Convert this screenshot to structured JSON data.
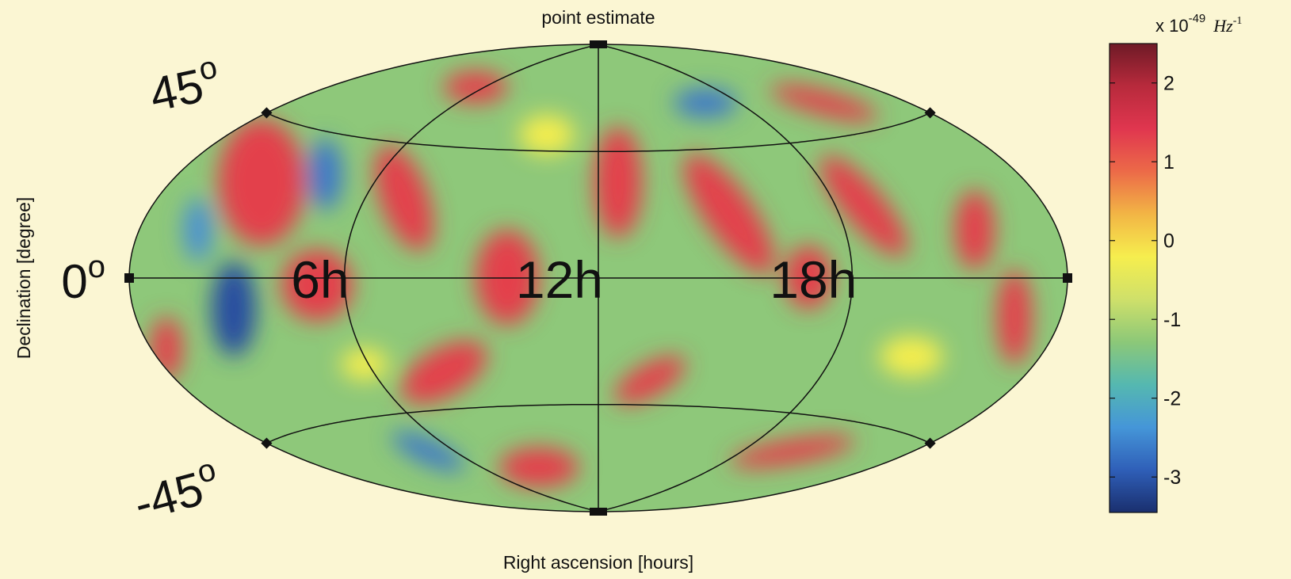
{
  "chart_data": {
    "type": "skymap",
    "title": "point estimate",
    "xlabel": "Right ascension [hours]",
    "ylabel": "Declination [degree]",
    "ra_ticks": [
      {
        "value": 18,
        "label": "18h"
      },
      {
        "value": 12,
        "label": "12h"
      },
      {
        "value": 6,
        "label": "6h"
      }
    ],
    "dec_ticks": [
      {
        "value": 45,
        "label": "45",
        "degree": "o"
      },
      {
        "value": 0,
        "label": "0",
        "degree": "o"
      },
      {
        "value": -45,
        "label": "-45",
        "degree": "o"
      }
    ],
    "colorbar": {
      "clim": [
        -3.45,
        2.5
      ],
      "ticks": [
        2,
        1,
        0,
        -1,
        -2,
        -3
      ],
      "label": {
        "prefix": "x 10",
        "exponent": "-49",
        "unit": "Hz",
        "unit_exponent": "-1"
      },
      "colormap": [
        "#1a2f6e",
        "#2f5fb8",
        "#4596d8",
        "#55b8b0",
        "#8cc878",
        "#cfe06a",
        "#f6ee4e",
        "#f2b545",
        "#ec6a48",
        "#e0364f",
        "#b82a3c",
        "#6e1a26"
      ]
    }
  }
}
